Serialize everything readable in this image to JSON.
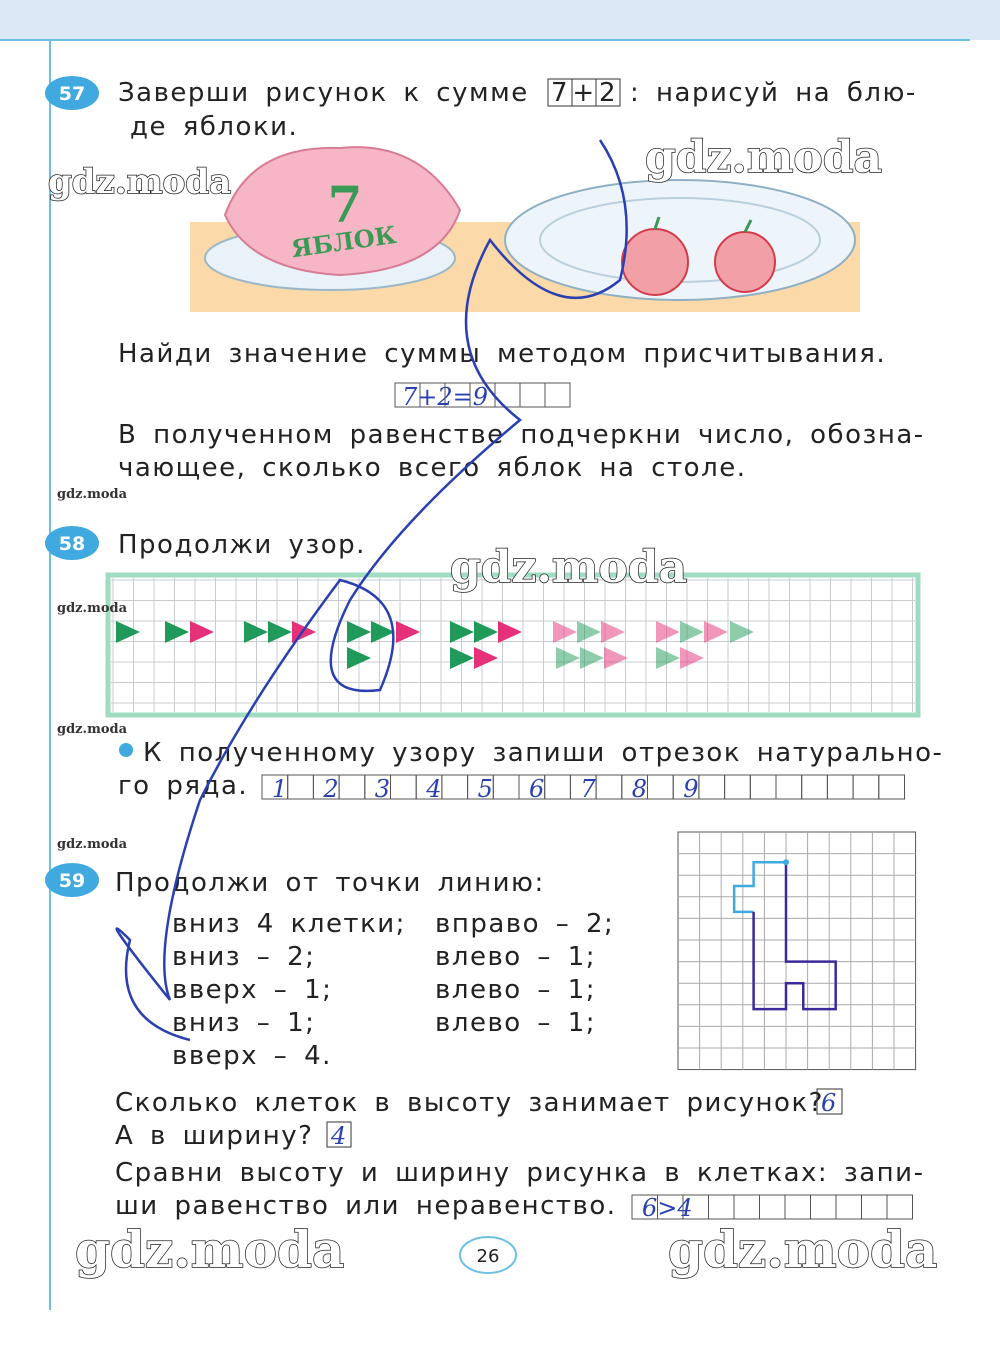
{
  "watermarks": [
    "gdz.moda",
    "gdz.moda",
    "gdz.moda",
    "gdz.moda",
    "gdz.moda",
    "gdz.moda",
    "gdz.moda",
    "gdz.moda",
    "gdz.moda"
  ],
  "task57": {
    "number": "57",
    "line1": "Заверши рисунок к сумме",
    "expression": [
      "7",
      "+",
      "2"
    ],
    "line1_end": ": нарисуй на блю-",
    "line2": "де яблоки.",
    "napkin_number": "7",
    "napkin_label": "ЯБЛОК",
    "prompt": "Найди значение суммы методом присчитывания.",
    "answer": "7+2=9",
    "instruction_lines": [
      "В полученном равенстве подчеркни число, обозна-",
      "чающее, сколько всего яблок на столе."
    ]
  },
  "task58": {
    "number": "58",
    "title": "Продолжи узор.",
    "question_lines": [
      "К полученному узору запиши отрезок натурально-",
      "го ряда."
    ],
    "answer": [
      "1",
      "2",
      "3",
      "4",
      "5",
      "6",
      "7",
      "8",
      "9"
    ]
  },
  "task59": {
    "number": "59",
    "title": "Продолжи от точки линию:",
    "steps_left": [
      "вниз 4 клетки;",
      "вниз – 2;",
      "вверх – 1;",
      "вниз – 1;",
      "вверх – 4."
    ],
    "steps_right": [
      "вправо – 2;",
      "влево – 1;",
      "влево – 1;",
      "влево – 1;"
    ],
    "q1": "Сколько клеток в высоту занимает рисунок?",
    "a1": "6",
    "q2": "А в ширину?",
    "a2": "4",
    "q3_lines": [
      "Сравни высоту и ширину рисунка в клетках: запи-",
      "ши равенство или неравенство."
    ],
    "a3": "6>4"
  },
  "page_number": "26"
}
